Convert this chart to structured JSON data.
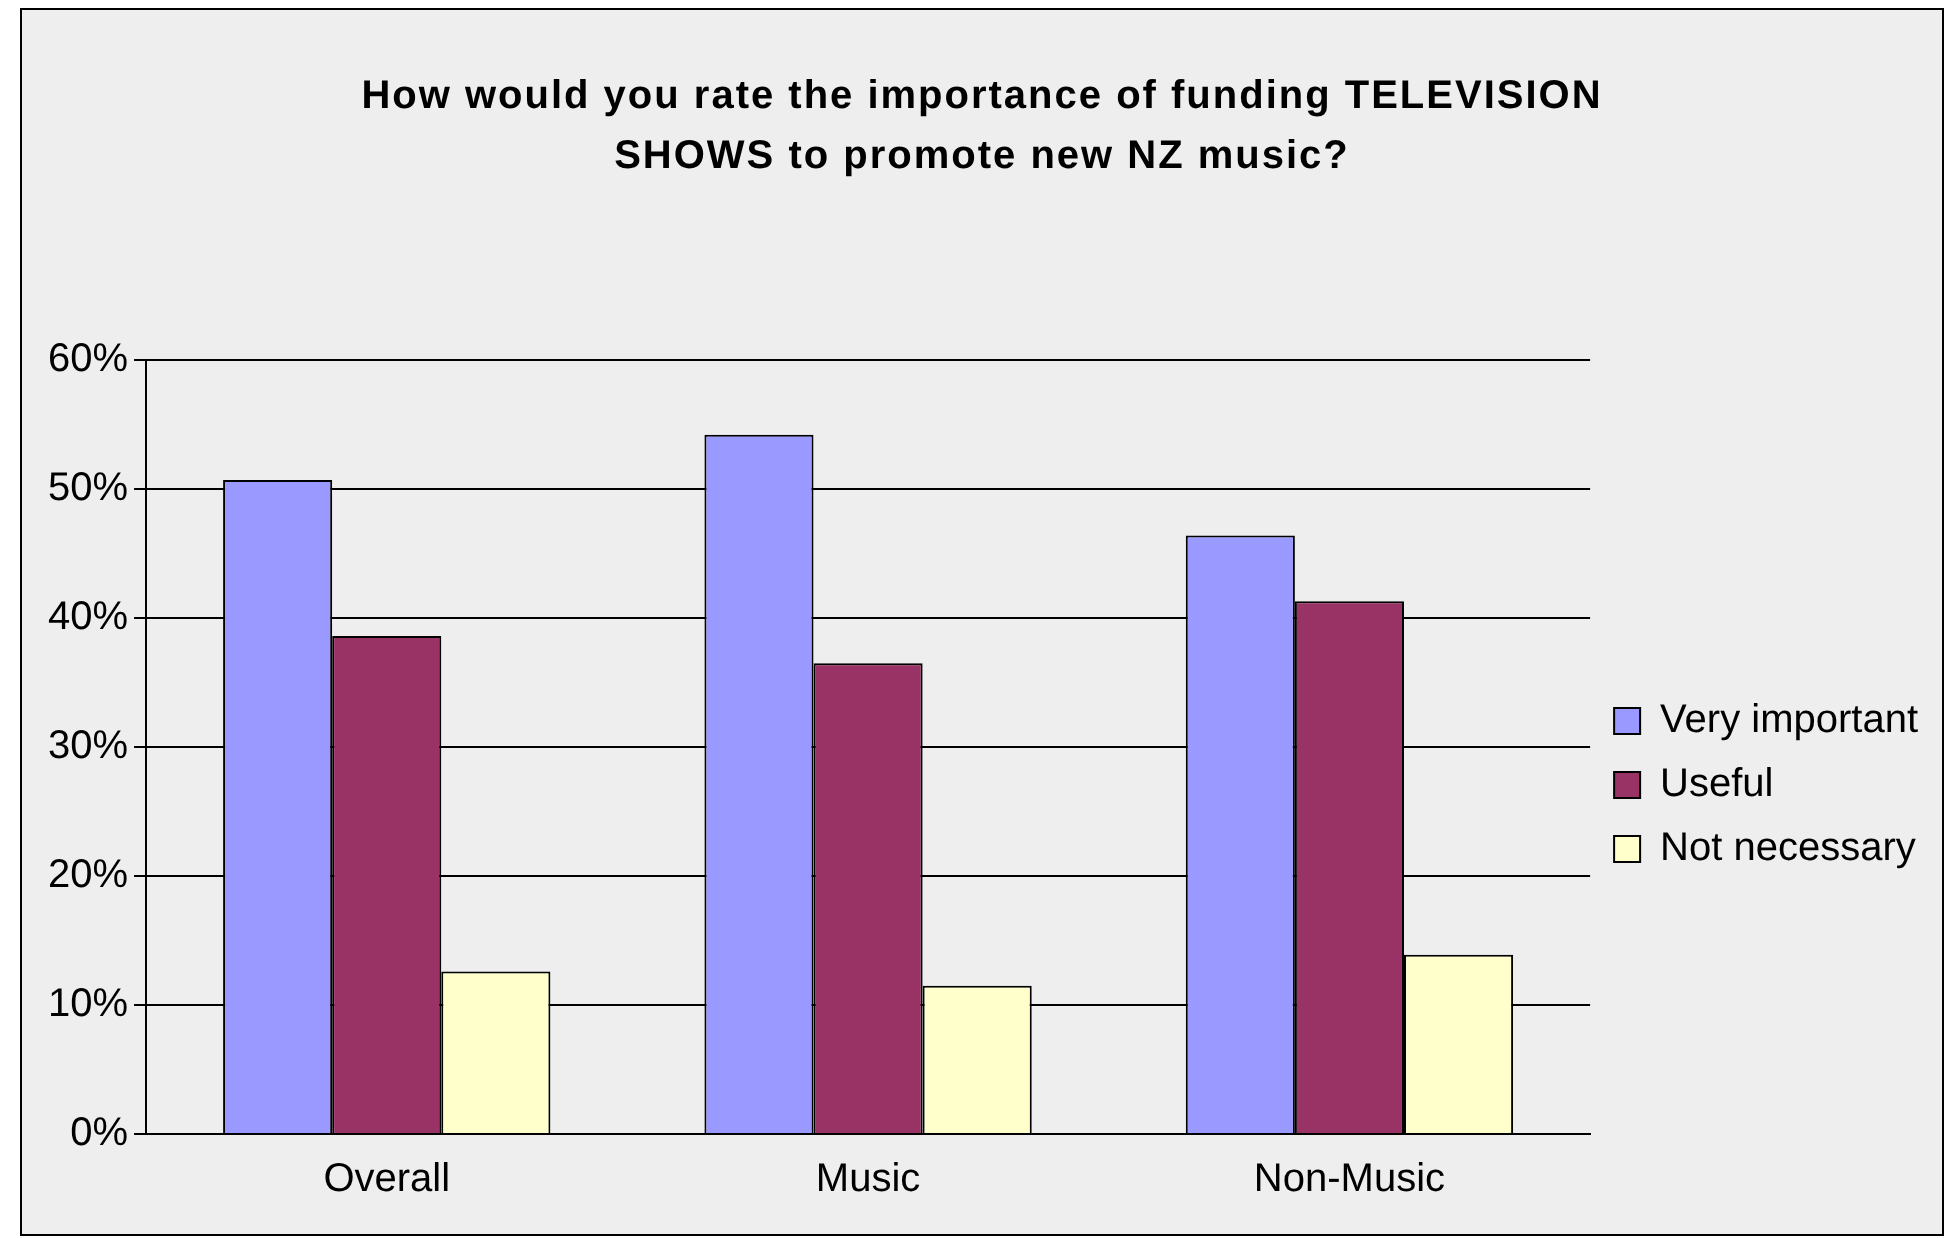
{
  "chart_data": {
    "type": "bar",
    "title": "How would you rate the importance of funding TELEVISION SHOWS to promote new NZ music?",
    "categories": [
      "Overall",
      "Music",
      "Non-Music"
    ],
    "series": [
      {
        "name": "Very important",
        "color": "#9999ff",
        "values": [
          50.7,
          54.2,
          46.4
        ]
      },
      {
        "name": "Useful",
        "color": "#993366",
        "values": [
          38.6,
          36.5,
          41.3
        ]
      },
      {
        "name": "Not necessary",
        "color": "#ffffcc",
        "values": [
          12.6,
          11.5,
          13.9
        ]
      }
    ],
    "ylim": [
      0,
      60
    ],
    "yticks": [
      {
        "value": 0,
        "label": "0%"
      },
      {
        "value": 10,
        "label": "10%"
      },
      {
        "value": 20,
        "label": "20%"
      },
      {
        "value": 30,
        "label": "30%"
      },
      {
        "value": 40,
        "label": "40%"
      },
      {
        "value": 50,
        "label": "50%"
      },
      {
        "value": 60,
        "label": "60%"
      }
    ],
    "grid": "y",
    "legend": "right"
  }
}
